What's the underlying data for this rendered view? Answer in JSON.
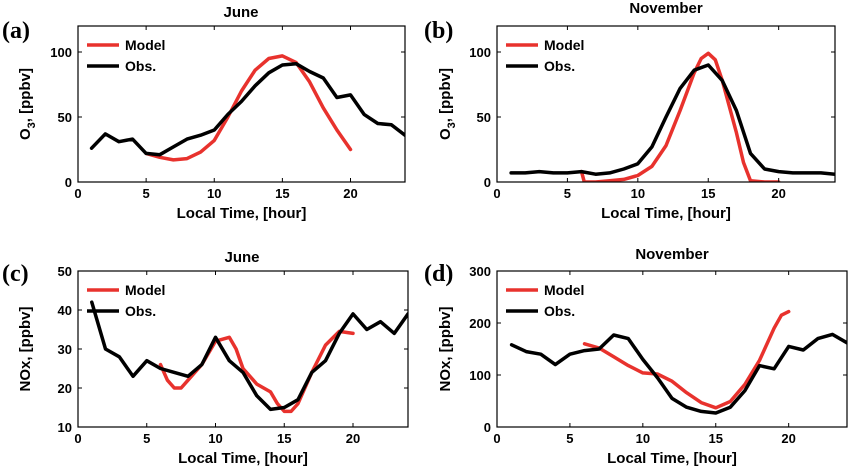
{
  "colors": {
    "model": "#e8322d",
    "obs": "#000000"
  },
  "chart_data": [
    {
      "type": "line",
      "panel_label": "(a)",
      "title": "June",
      "xlabel": "Local Time, [hour]",
      "ylabel": "O3, [ppbv]",
      "ylabel_main": "O",
      "ylabel_sub": "3",
      "ylabel_rest": ", [ppbv]",
      "xlim": [
        0,
        24
      ],
      "ylim": [
        0,
        120
      ],
      "xticks": [
        0,
        5,
        10,
        15,
        20
      ],
      "yticks": [
        0,
        50,
        100
      ],
      "legend": "top-left",
      "series": [
        {
          "name": "Model",
          "color": "#e8322d",
          "x": [
            5,
            6,
            7,
            8,
            9,
            10,
            11,
            12,
            13,
            14,
            15,
            16,
            17,
            18,
            19,
            20
          ],
          "y": [
            22,
            19,
            17,
            18,
            23,
            32,
            50,
            70,
            86,
            95,
            97,
            92,
            77,
            57,
            40,
            25
          ]
        },
        {
          "name": "Obs.",
          "color": "#000000",
          "x": [
            1,
            2,
            3,
            4,
            5,
            6,
            7,
            8,
            9,
            10,
            11,
            12,
            13,
            14,
            15,
            16,
            17,
            18,
            19,
            20,
            21,
            22,
            23,
            24
          ],
          "y": [
            26,
            37,
            31,
            33,
            22,
            21,
            27,
            33,
            36,
            40,
            52,
            62,
            74,
            84,
            90,
            91,
            85,
            80,
            65,
            67,
            52,
            45,
            44,
            36
          ]
        }
      ]
    },
    {
      "type": "line",
      "panel_label": "(b)",
      "title": "November",
      "xlabel": "Local Time, [hour]",
      "ylabel": "O3, [ppbv]",
      "ylabel_main": "O",
      "ylabel_sub": "3",
      "ylabel_rest": ", [ppbv]",
      "xlim": [
        0,
        24
      ],
      "ylim": [
        0,
        120
      ],
      "xticks": [
        0,
        5,
        10,
        15,
        20
      ],
      "yticks": [
        0,
        50,
        100
      ],
      "legend": "top-left",
      "series": [
        {
          "name": "Model",
          "color": "#e8322d",
          "x": [
            6,
            6.2,
            7,
            8,
            9,
            10,
            11,
            12,
            13,
            14,
            14.5,
            15,
            15.5,
            16,
            17,
            17.5,
            18,
            19,
            20
          ],
          "y": [
            8,
            0,
            0,
            1,
            2,
            5,
            12,
            28,
            55,
            84,
            95,
            99,
            94,
            78,
            38,
            15,
            1,
            0,
            0
          ]
        },
        {
          "name": "Obs.",
          "color": "#000000",
          "x": [
            1,
            2,
            3,
            4,
            5,
            6,
            7,
            8,
            9,
            10,
            11,
            12,
            13,
            14,
            15,
            16,
            17,
            18,
            19,
            20,
            21,
            22,
            23,
            24
          ],
          "y": [
            7,
            7,
            8,
            7,
            7,
            8,
            6,
            7,
            10,
            14,
            27,
            50,
            72,
            86,
            90,
            78,
            55,
            22,
            10,
            8,
            7,
            7,
            7,
            6
          ]
        }
      ]
    },
    {
      "type": "line",
      "panel_label": "(c)",
      "title": "June",
      "xlabel": "Local Time, [hour]",
      "ylabel": "NOx, [ppbv]",
      "xlim": [
        0,
        24
      ],
      "ylim": [
        10,
        50
      ],
      "xticks": [
        0,
        5,
        10,
        15,
        20
      ],
      "yticks": [
        10,
        20,
        30,
        40,
        50
      ],
      "legend": "top-left",
      "series": [
        {
          "name": "Model",
          "color": "#e8322d",
          "x": [
            6,
            6.5,
            7,
            7.5,
            8,
            8.5,
            9,
            10,
            11,
            11.5,
            12,
            13,
            14,
            14.5,
            15,
            15.5,
            16,
            17,
            18,
            19,
            20
          ],
          "y": [
            26,
            22,
            20,
            20,
            22,
            24,
            26,
            32,
            33,
            30,
            25,
            21,
            19,
            16,
            14,
            14,
            16,
            24,
            31,
            34.5,
            34
          ]
        },
        {
          "name": "Obs.",
          "color": "#000000",
          "x": [
            1,
            2,
            3,
            4,
            5,
            6,
            7,
            8,
            9,
            10,
            11,
            12,
            13,
            14,
            15,
            16,
            17,
            18,
            19,
            20,
            21,
            22,
            23,
            24
          ],
          "y": [
            42,
            30,
            28,
            23,
            27,
            25,
            24,
            23,
            26,
            33,
            27,
            24,
            18,
            14.5,
            15,
            17,
            24,
            27,
            34,
            39,
            35,
            37,
            34,
            39
          ]
        }
      ]
    },
    {
      "type": "line",
      "panel_label": "(d)",
      "title": "November",
      "xlabel": "Local Time, [hour]",
      "ylabel": "NOx, [ppbv]",
      "xlim": [
        0,
        24
      ],
      "ylim": [
        0,
        300
      ],
      "xticks": [
        0,
        5,
        10,
        15,
        20
      ],
      "yticks": [
        0,
        100,
        200,
        300
      ],
      "legend": "top-left",
      "series": [
        {
          "name": "Model",
          "color": "#e8322d",
          "x": [
            6,
            7,
            8,
            9,
            10,
            11,
            12,
            13,
            14,
            15,
            16,
            17,
            18,
            19,
            19.5,
            20
          ],
          "y": [
            160,
            152,
            135,
            118,
            104,
            102,
            88,
            66,
            47,
            37,
            49,
            82,
            128,
            190,
            215,
            222
          ]
        },
        {
          "name": "Obs.",
          "color": "#000000",
          "x": [
            1,
            2,
            3,
            4,
            5,
            6,
            7,
            8,
            9,
            10,
            11,
            12,
            13,
            14,
            15,
            16,
            17,
            18,
            19,
            20,
            21,
            22,
            23,
            24
          ],
          "y": [
            158,
            145,
            140,
            120,
            140,
            147,
            150,
            177,
            170,
            130,
            95,
            55,
            38,
            30,
            27,
            38,
            70,
            118,
            112,
            155,
            148,
            170,
            178,
            162
          ]
        }
      ]
    }
  ]
}
